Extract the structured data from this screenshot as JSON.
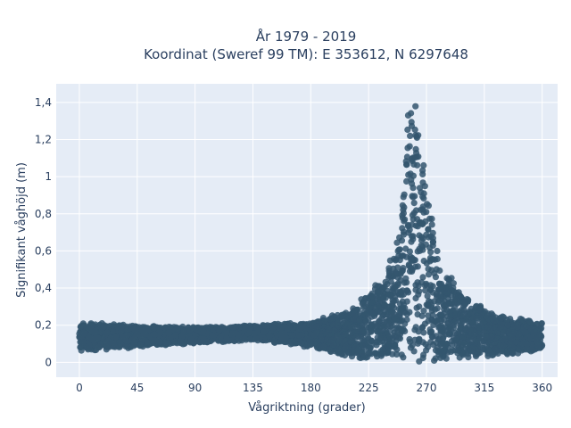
{
  "chart_data": {
    "type": "scatter",
    "title_line1": "År 1979 - 2019",
    "title_line2": "Koordinat (Sweref 99 TM): E 353612, N 6297648",
    "xlabel": "Vågriktning (grader)",
    "ylabel": "Signifikant våghöjd (m)",
    "xlim": [
      -18,
      372
    ],
    "ylim": [
      -0.08,
      1.5
    ],
    "x_ticks": [
      0,
      45,
      90,
      135,
      180,
      225,
      270,
      315,
      360
    ],
    "x_tick_labels": [
      "0",
      "45",
      "90",
      "135",
      "180",
      "225",
      "270",
      "315",
      "360"
    ],
    "y_ticks": [
      0,
      0.2,
      0.4,
      0.6,
      0.8,
      1.0,
      1.2,
      1.4
    ],
    "y_tick_labels": [
      "0",
      "0,2",
      "0,4",
      "0,6",
      "0,8",
      "1",
      "1,2",
      "1,4"
    ],
    "grid": true,
    "marker_color": "#34566e",
    "plot_bg": "#e5ecf6",
    "series": [
      {
        "envelope": [
          {
            "x": 0,
            "ymin": 0.06,
            "ymax": 0.22
          },
          {
            "x": 45,
            "ymin": 0.08,
            "ymax": 0.2
          },
          {
            "x": 90,
            "ymin": 0.1,
            "ymax": 0.19
          },
          {
            "x": 135,
            "ymin": 0.12,
            "ymax": 0.2
          },
          {
            "x": 180,
            "ymin": 0.08,
            "ymax": 0.22
          },
          {
            "x": 210,
            "ymin": 0.03,
            "ymax": 0.28
          },
          {
            "x": 235,
            "ymin": 0.01,
            "ymax": 0.45
          },
          {
            "x": 250,
            "ymin": 0.01,
            "ymax": 0.7
          },
          {
            "x": 255,
            "ymin": 0.01,
            "ymax": 1.42
          },
          {
            "x": 262,
            "ymin": 0.0,
            "ymax": 1.4
          },
          {
            "x": 270,
            "ymin": 0.0,
            "ymax": 1.0
          },
          {
            "x": 280,
            "ymin": 0.0,
            "ymax": 0.55
          },
          {
            "x": 300,
            "ymin": 0.02,
            "ymax": 0.35
          },
          {
            "x": 330,
            "ymin": 0.04,
            "ymax": 0.25
          },
          {
            "x": 360,
            "ymin": 0.06,
            "ymax": 0.22
          }
        ]
      }
    ]
  }
}
